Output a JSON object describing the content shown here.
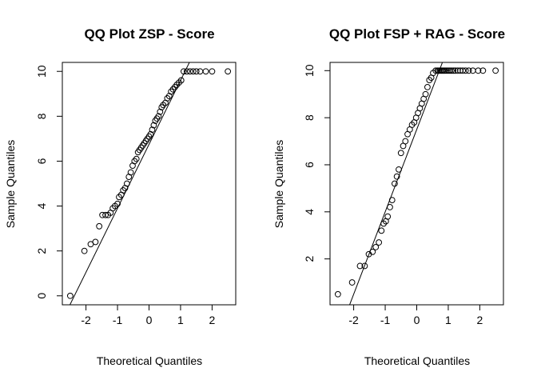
{
  "chart_data": [
    {
      "type": "scatter",
      "title": "QQ Plot ZSP - Score",
      "xlabel": "Theoretical Quantiles",
      "ylabel": "Sample Quantiles",
      "xlim": [
        -2.75,
        2.75
      ],
      "ylim": [
        -0.4,
        10.4
      ],
      "xticks": [
        "-2",
        "-1",
        "0",
        "1",
        "2"
      ],
      "yticks": [
        "0",
        "2",
        "4",
        "6",
        "8",
        "10"
      ],
      "reference_line": {
        "slope": 2.85,
        "intercept": 6.75
      },
      "series": [
        {
          "x": [
            -2.5,
            -2.05,
            -1.85,
            -1.7,
            -1.58,
            -1.48,
            -1.38,
            -1.3,
            -1.22,
            -1.15,
            -1.08,
            -1.0,
            -0.95,
            -0.88,
            -0.82,
            -0.76,
            -0.7,
            -0.64,
            -0.58,
            -0.52,
            -0.46,
            -0.4,
            -0.35,
            -0.3,
            -0.25,
            -0.2,
            -0.15,
            -0.1,
            -0.05,
            0.0,
            0.05,
            0.1,
            0.15,
            0.2,
            0.25,
            0.3,
            0.35,
            0.4,
            0.45,
            0.52,
            0.58,
            0.64,
            0.7,
            0.76,
            0.82,
            0.88,
            0.95,
            1.02,
            1.1,
            1.2,
            1.3,
            1.4,
            1.5,
            1.62,
            1.8,
            2.0,
            2.5
          ],
          "y": [
            0.0,
            2.0,
            2.3,
            2.4,
            3.1,
            3.6,
            3.6,
            3.6,
            3.7,
            3.9,
            4.0,
            4.1,
            4.4,
            4.5,
            4.7,
            4.8,
            5.0,
            5.3,
            5.5,
            5.8,
            6.0,
            6.1,
            6.4,
            6.5,
            6.6,
            6.7,
            6.8,
            6.9,
            7.0,
            7.1,
            7.2,
            7.4,
            7.6,
            7.8,
            7.9,
            8.0,
            8.2,
            8.4,
            8.5,
            8.6,
            8.8,
            8.9,
            9.1,
            9.2,
            9.3,
            9.4,
            9.5,
            9.6,
            10.0,
            10.0,
            10.0,
            10.0,
            10.0,
            10.0,
            10.0,
            10.0,
            10.0
          ]
        }
      ]
    },
    {
      "type": "scatter",
      "title": "QQ Plot FSP + RAG - Score",
      "xlabel": "Theoretical Quantiles",
      "ylabel": "Sample Quantiles",
      "xlim": [
        -2.75,
        2.75
      ],
      "ylim": [
        0.05,
        10.35
      ],
      "xticks": [
        "-2",
        "-1",
        "0",
        "1",
        "2"
      ],
      "yticks": [
        "2",
        "4",
        "6",
        "8",
        "10"
      ],
      "reference_line": {
        "slope": 3.5,
        "intercept": 7.5
      },
      "series": [
        {
          "x": [
            -2.5,
            -2.05,
            -1.8,
            -1.65,
            -1.52,
            -1.4,
            -1.3,
            -1.2,
            -1.12,
            -1.05,
            -0.98,
            -0.92,
            -0.85,
            -0.78,
            -0.7,
            -0.63,
            -0.57,
            -0.5,
            -0.43,
            -0.36,
            -0.29,
            -0.22,
            -0.15,
            -0.08,
            -0.02,
            0.04,
            0.1,
            0.16,
            0.22,
            0.28,
            0.34,
            0.4,
            0.46,
            0.52,
            0.6,
            0.66,
            0.7,
            0.74,
            0.78,
            0.82,
            0.86,
            0.9,
            0.95,
            1.0,
            1.05,
            1.1,
            1.16,
            1.22,
            1.3,
            1.38,
            1.46,
            1.55,
            1.65,
            1.78,
            1.95,
            2.1,
            2.5
          ],
          "y": [
            0.5,
            1.0,
            1.7,
            1.7,
            2.2,
            2.3,
            2.5,
            2.7,
            3.2,
            3.5,
            3.6,
            3.8,
            4.2,
            4.5,
            5.2,
            5.5,
            5.8,
            6.5,
            6.8,
            7.0,
            7.3,
            7.5,
            7.7,
            7.8,
            8.0,
            8.2,
            8.4,
            8.6,
            8.8,
            9.0,
            9.3,
            9.6,
            9.7,
            9.9,
            10.0,
            10.0,
            10.0,
            10.0,
            10.0,
            10.0,
            10.0,
            10.0,
            10.0,
            10.0,
            10.0,
            10.0,
            10.0,
            10.0,
            10.0,
            10.0,
            10.0,
            10.0,
            10.0,
            10.0,
            10.0,
            10.0,
            10.0
          ]
        }
      ]
    }
  ]
}
